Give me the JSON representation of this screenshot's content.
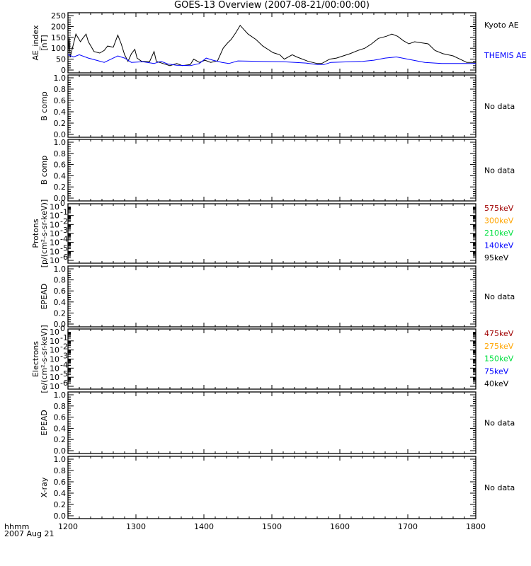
{
  "title": "GOES-13 Overview (2007-08-21/00:00:00)",
  "footer": {
    "line1": "hhmm",
    "line2": "2007 Aug 21"
  },
  "chart_data": {
    "type": "line",
    "title": "GOES-13 Overview (2007-08-21/00:00:00)",
    "x_axis": {
      "label": "hhmm",
      "date": "2007 Aug 21",
      "range_minutes_after_1200": [
        0,
        360
      ],
      "tick_labels": [
        "1200",
        "1300",
        "1400",
        "1500",
        "1600",
        "1700",
        "1800"
      ]
    },
    "panels": [
      {
        "ylabel": [
          "AE_index",
          "[nT]"
        ],
        "scale": "linear",
        "ylim": [
          0,
          250
        ],
        "ticks": [
          0,
          50,
          100,
          150,
          200,
          250
        ],
        "tick_labels": [
          "0",
          "50",
          "100",
          "150",
          "200",
          "250"
        ],
        "legend": [
          {
            "text": "Kyoto AE",
            "color": "#000000"
          },
          {
            "text": "THEMIS AE",
            "color": "#0000ff"
          }
        ],
        "series": [
          {
            "name": "Kyoto AE",
            "color": "#000000",
            "points": [
              [
                0,
                145
              ],
              [
                0.5,
                95
              ],
              [
                1,
                150
              ],
              [
                2,
                60
              ],
              [
                7,
                165
              ],
              [
                11,
                130
              ],
              [
                13,
                145
              ],
              [
                16,
                165
              ],
              [
                18,
                130
              ],
              [
                23,
                85
              ],
              [
                28,
                78
              ],
              [
                32,
                90
              ],
              [
                35,
                110
              ],
              [
                40,
                105
              ],
              [
                44,
                160
              ],
              [
                47,
                120
              ],
              [
                50,
                70
              ],
              [
                53,
                40
              ],
              [
                56,
                75
              ],
              [
                59,
                95
              ],
              [
                61,
                55
              ],
              [
                65,
                40
              ],
              [
                72,
                38
              ],
              [
                76,
                85
              ],
              [
                78,
                40
              ],
              [
                84,
                30
              ],
              [
                90,
                20
              ],
              [
                96,
                30
              ],
              [
                101,
                20
              ],
              [
                108,
                25
              ],
              [
                111,
                50
              ],
              [
                116,
                35
              ],
              [
                121,
                45
              ],
              [
                126,
                35
              ],
              [
                132,
                42
              ],
              [
                137,
                100
              ],
              [
                141,
                125
              ],
              [
                144,
                140
              ],
              [
                148,
                170
              ],
              [
                152,
                205
              ],
              [
                159,
                165
              ],
              [
                166,
                140
              ],
              [
                172,
                110
              ],
              [
                181,
                80
              ],
              [
                187,
                70
              ],
              [
                191,
                50
              ],
              [
                198,
                70
              ],
              [
                202,
                60
              ],
              [
                212,
                40
              ],
              [
                220,
                30
              ],
              [
                224,
                30
              ],
              [
                231,
                50
              ],
              [
                237,
                55
              ],
              [
                243,
                65
              ],
              [
                249,
                75
              ],
              [
                256,
                90
              ],
              [
                262,
                100
              ],
              [
                268,
                120
              ],
              [
                274,
                145
              ],
              [
                281,
                155
              ],
              [
                286,
                165
              ],
              [
                291,
                155
              ],
              [
                296,
                135
              ],
              [
                301,
                120
              ],
              [
                306,
                130
              ],
              [
                312,
                125
              ],
              [
                318,
                120
              ],
              [
                324,
                90
              ],
              [
                331,
                75
              ],
              [
                340,
                65
              ],
              [
                348,
                45
              ],
              [
                352,
                35
              ],
              [
                360,
                35
              ]
            ]
          },
          {
            "name": "THEMIS AE",
            "color": "#0000ff",
            "points": [
              [
                0,
                70
              ],
              [
                5,
                60
              ],
              [
                10,
                70
              ],
              [
                18,
                55
              ],
              [
                25,
                45
              ],
              [
                32,
                35
              ],
              [
                40,
                55
              ],
              [
                44,
                65
              ],
              [
                50,
                55
              ],
              [
                56,
                35
              ],
              [
                66,
                38
              ],
              [
                76,
                30
              ],
              [
                82,
                40
              ],
              [
                88,
                28
              ],
              [
                96,
                22
              ],
              [
                108,
                20
              ],
              [
                116,
                30
              ],
              [
                122,
                55
              ],
              [
                128,
                45
              ],
              [
                136,
                35
              ],
              [
                142,
                30
              ],
              [
                150,
                42
              ],
              [
                170,
                40
              ],
              [
                190,
                38
              ],
              [
                210,
                32
              ],
              [
                220,
                25
              ],
              [
                226,
                25
              ],
              [
                232,
                35
              ],
              [
                260,
                40
              ],
              [
                270,
                45
              ],
              [
                280,
                55
              ],
              [
                290,
                60
              ],
              [
                300,
                50
              ],
              [
                315,
                35
              ],
              [
                330,
                30
              ],
              [
                360,
                30
              ]
            ]
          }
        ]
      },
      {
        "ylabel": [
          "B comp"
        ],
        "scale": "linear",
        "ylim": [
          0,
          1
        ],
        "ticks": [
          0,
          0.2,
          0.4,
          0.6,
          0.8,
          1
        ],
        "tick_labels": [
          "0.0",
          "0.2",
          "0.4",
          "0.6",
          "0.8",
          "1.0"
        ],
        "legend": [
          {
            "text": "No data",
            "color": "#000000"
          }
        ]
      },
      {
        "ylabel": [
          "B comp"
        ],
        "scale": "linear",
        "ylim": [
          0,
          1
        ],
        "ticks": [
          0,
          0.2,
          0.4,
          0.6,
          0.8,
          1
        ],
        "tick_labels": [
          "0.0",
          "0.2",
          "0.4",
          "0.6",
          "0.8",
          "1.0"
        ],
        "legend": [
          {
            "text": "No data",
            "color": "#000000"
          }
        ]
      },
      {
        "ylabel": [
          "Protons",
          "[p/(cm²-s-sr-keV)]"
        ],
        "scale": "log",
        "ylim": [
          -6,
          0
        ],
        "ticks": [
          0,
          -1,
          -2,
          -3,
          -4,
          -5,
          -6
        ],
        "tick_labels": [
          "0",
          "-1",
          "-2",
          "-3",
          "-4",
          "-5",
          "-6"
        ],
        "legend": [
          {
            "text": "575keV",
            "color": "#a00000"
          },
          {
            "text": "300keV",
            "color": "#ffa500"
          },
          {
            "text": "210keV",
            "color": "#00e040"
          },
          {
            "text": "140keV",
            "color": "#0000ff"
          },
          {
            "text": "95keV",
            "color": "#000000"
          }
        ]
      },
      {
        "ylabel": [
          "EPEAD"
        ],
        "scale": "linear",
        "ylim": [
          0,
          1
        ],
        "ticks": [
          0,
          0.2,
          0.4,
          0.6,
          0.8,
          1
        ],
        "tick_labels": [
          "0.0",
          "0.2",
          "0.4",
          "0.6",
          "0.8",
          "1.0"
        ],
        "legend": [
          {
            "text": "No data",
            "color": "#000000"
          }
        ]
      },
      {
        "ylabel": [
          "Electrons",
          "[e/(cm²-s-sr-keV)]"
        ],
        "scale": "log",
        "ylim": [
          -6,
          0
        ],
        "ticks": [
          0,
          -1,
          -2,
          -3,
          -4,
          -5,
          -6
        ],
        "tick_labels": [
          "0",
          "-1",
          "-2",
          "-3",
          "-4",
          "-5",
          "-6"
        ],
        "legend": [
          {
            "text": "475keV",
            "color": "#a00000"
          },
          {
            "text": "275keV",
            "color": "#ffa500"
          },
          {
            "text": "150keV",
            "color": "#00e040"
          },
          {
            "text": "75keV",
            "color": "#0000ff"
          },
          {
            "text": "40keV",
            "color": "#000000"
          }
        ]
      },
      {
        "ylabel": [
          "EPEAD"
        ],
        "scale": "linear",
        "ylim": [
          0,
          1
        ],
        "ticks": [
          0,
          0.2,
          0.4,
          0.6,
          0.8,
          1
        ],
        "tick_labels": [
          "0.0",
          "0.2",
          "0.4",
          "0.6",
          "0.8",
          "1.0"
        ],
        "legend": [
          {
            "text": "No data",
            "color": "#000000"
          }
        ]
      },
      {
        "ylabel": [
          "X-ray"
        ],
        "scale": "linear",
        "ylim": [
          0,
          1
        ],
        "ticks": [
          0,
          0.2,
          0.4,
          0.6,
          0.8,
          1
        ],
        "tick_labels": [
          "0.0",
          "0.2",
          "0.4",
          "0.6",
          "0.8",
          "1.0"
        ],
        "legend": [
          {
            "text": "No data",
            "color": "#000000"
          }
        ]
      }
    ]
  }
}
